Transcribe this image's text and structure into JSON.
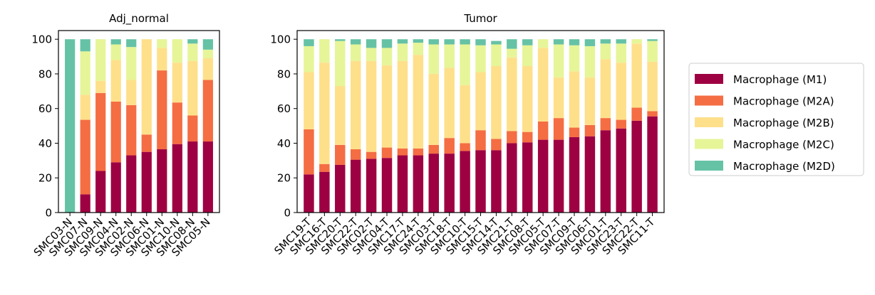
{
  "chart_data": [
    {
      "type": "bar",
      "stacked": true,
      "title": "Adj_normal",
      "xlabel": "",
      "ylabel": "",
      "ylim": [
        0,
        105
      ],
      "yticks": [
        0,
        20,
        40,
        60,
        80,
        100
      ],
      "categories": [
        "SMC03-N",
        "SMC07-N",
        "SMC09-N",
        "SMC04-N",
        "SMC02-N",
        "SMC06-N",
        "SMC01-N",
        "SMC10-N",
        "SMC08-N",
        "SMC05-N"
      ],
      "series": [
        {
          "name": "Macrophage (M1)",
          "values": [
            0,
            10.5,
            24,
            29,
            33,
            35,
            36.5,
            39.5,
            41,
            41
          ]
        },
        {
          "name": "Macrophage (M2A)",
          "values": [
            0,
            43,
            45,
            35,
            29,
            10,
            45.5,
            24,
            15,
            35.5
          ]
        },
        {
          "name": "Macrophage (M2B)",
          "values": [
            0,
            14.5,
            7,
            24,
            14.5,
            55,
            13,
            23,
            31.5,
            12.5
          ]
        },
        {
          "name": "Macrophage (M2C)",
          "values": [
            0,
            25,
            24,
            9,
            19,
            0,
            5,
            13.5,
            10,
            5
          ]
        },
        {
          "name": "Macrophage (M2D)",
          "values": [
            100,
            7,
            0,
            3,
            4.5,
            0,
            0,
            0,
            2.5,
            6
          ]
        }
      ]
    },
    {
      "type": "bar",
      "stacked": true,
      "title": "Tumor",
      "xlabel": "",
      "ylabel": "",
      "ylim": [
        0,
        105
      ],
      "yticks": [
        0,
        20,
        40,
        60,
        80,
        100
      ],
      "categories": [
        "SMC19-T",
        "SMC16-T",
        "SMC20-T",
        "SMC22-T",
        "SMC02-T",
        "SMC04-T",
        "SMC17-T",
        "SMC24-T",
        "SMC03-T",
        "SMC18-T",
        "SMC10-T",
        "SMC15-T",
        "SMC14-T",
        "SMC21-T",
        "SMC08-T",
        "SMC05-T",
        "SMC07-T",
        "SMC09-T",
        "SMC06-T",
        "SMC01-T",
        "SMC23-T",
        "SMC22-T",
        "SMC11-T"
      ],
      "series": [
        {
          "name": "Macrophage (M1)",
          "values": [
            22,
            23.5,
            27.5,
            30.5,
            31,
            31.5,
            33,
            33,
            34,
            34,
            35.5,
            36,
            36,
            40,
            40.5,
            42,
            42,
            43.5,
            44,
            47.5,
            48.5,
            53,
            55.5
          ]
        },
        {
          "name": "Macrophage (M2A)",
          "values": [
            26,
            4.5,
            11.5,
            6,
            4,
            6,
            4,
            4,
            5,
            9,
            4.5,
            11.5,
            6.5,
            7,
            6,
            10.5,
            12.5,
            5.5,
            6.5,
            7,
            5,
            7.5,
            3
          ]
        },
        {
          "name": "Macrophage (M2B)",
          "values": [
            33,
            58.5,
            34,
            51,
            52.5,
            47.5,
            50.5,
            54,
            41,
            40.5,
            33.5,
            33.5,
            42,
            42.5,
            38,
            42.5,
            23.5,
            32.5,
            27.5,
            34,
            33,
            37,
            28.5
          ]
        },
        {
          "name": "Macrophage (M2C)",
          "values": [
            15,
            13.5,
            26,
            9.5,
            7.5,
            10,
            10,
            7,
            17,
            13.5,
            23.5,
            15.5,
            12.5,
            5,
            12,
            5,
            19,
            15,
            18,
            9,
            11,
            2.5,
            12
          ]
        },
        {
          "name": "Macrophage (M2D)",
          "values": [
            4,
            0,
            1,
            3,
            5,
            5,
            2.5,
            2,
            3,
            3,
            3,
            3.5,
            2,
            5.5,
            3.5,
            0,
            3,
            3.5,
            4,
            2.5,
            2.5,
            0,
            1
          ]
        }
      ]
    }
  ],
  "legend": {
    "placement": "right",
    "items": [
      {
        "label": "Macrophage (M1)",
        "color": "#9e0142"
      },
      {
        "label": "Macrophage (M2A)",
        "color": "#f46d43"
      },
      {
        "label": "Macrophage (M2B)",
        "color": "#fee08b"
      },
      {
        "label": "Macrophage (M2C)",
        "color": "#e6f598"
      },
      {
        "label": "Macrophage (M2D)",
        "color": "#66c2a5"
      }
    ]
  }
}
